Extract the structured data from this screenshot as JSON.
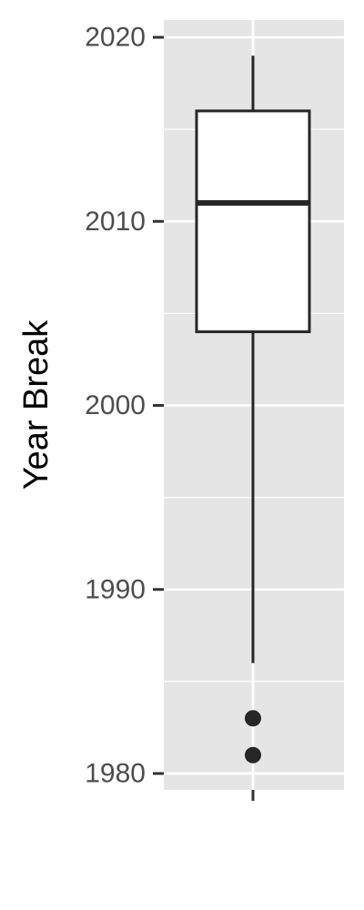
{
  "chart_data": {
    "type": "boxplot",
    "title": "",
    "xlabel": "",
    "ylabel": "Year Break",
    "ylim": [
      1979,
      2021
    ],
    "yticks": [
      1980,
      1990,
      2000,
      2010,
      2020
    ],
    "ytick_labels": [
      "1980",
      "1990",
      "2000",
      "2010",
      "2020"
    ],
    "grid": true,
    "panel_background": "#e5e5e5",
    "grid_color": "#ffffff",
    "box_fill": "#ffffff",
    "line_color": "#262626",
    "box": {
      "whisker_low": 1986,
      "q1": 2004,
      "median": 2011,
      "q3": 2016,
      "whisker_high": 2019,
      "outliers": [
        1983,
        1981
      ]
    }
  }
}
